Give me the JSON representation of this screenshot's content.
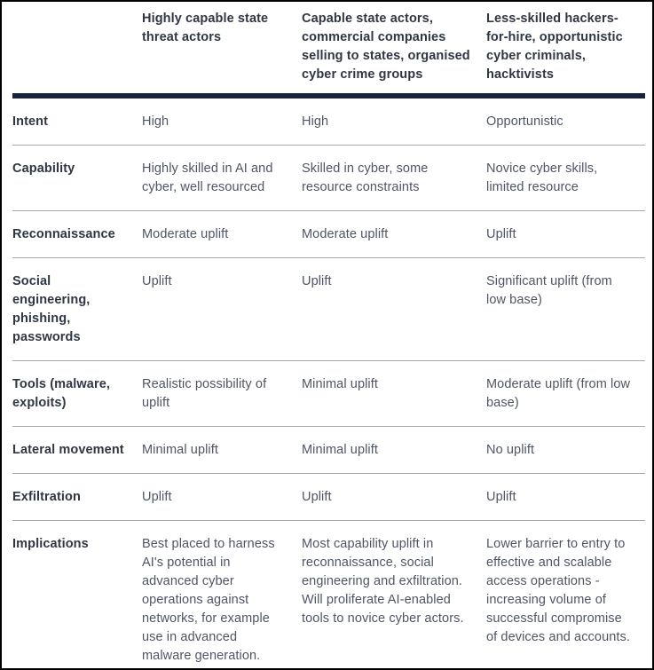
{
  "table": {
    "corner_label": "",
    "column_headers": [
      "Highly capable state threat actors",
      "Capable state actors, commercial companies selling to states, organised cyber crime groups",
      "Less-skilled hackers-for-hire, opportunistic cyber criminals, hacktivists"
    ],
    "rows": [
      {
        "label": "Intent",
        "cells": [
          "High",
          "High",
          "Opportunistic"
        ]
      },
      {
        "label": "Capability",
        "cells": [
          "Highly skilled in AI and cyber, well resourced",
          "Skilled in cyber, some resource constraints",
          "Novice cyber skills, limited resource"
        ]
      },
      {
        "label": "Reconnaissance",
        "cells": [
          "Moderate uplift",
          "Moderate uplift",
          "Uplift"
        ]
      },
      {
        "label": "Social engineering, phishing, passwords",
        "cells": [
          "Uplift",
          "Uplift",
          "Significant uplift (from low base)"
        ]
      },
      {
        "label": "Tools (malware, exploits)",
        "cells": [
          "Realistic possibility of uplift",
          "Minimal uplift",
          "Moderate uplift (from low base)"
        ]
      },
      {
        "label": "Lateral movement",
        "cells": [
          "Minimal uplift",
          "Minimal uplift",
          "No uplift"
        ]
      },
      {
        "label": "Exfiltration",
        "cells": [
          "Uplift",
          "Uplift",
          "Uplift"
        ]
      },
      {
        "label": "Implications",
        "cells": [
          "Best placed to harness AI's potential in advanced cyber operations against networks, for example use in advanced malware generation.",
          "Most capability uplift in reconnaissance, social engineering and exfiltration. Will proliferate AI-enabled tools to novice cyber actors.",
          "Lower barrier to entry to effective and scalable access operations - increasing volume of successful compromise of devices and accounts."
        ]
      }
    ]
  },
  "colors": {
    "outer_border": "#000000",
    "header_rule": "#17233e",
    "row_divider": "#a9a9a9",
    "heading_text": "#2f3744",
    "body_text": "#4e5566",
    "background": "#ffffff"
  }
}
